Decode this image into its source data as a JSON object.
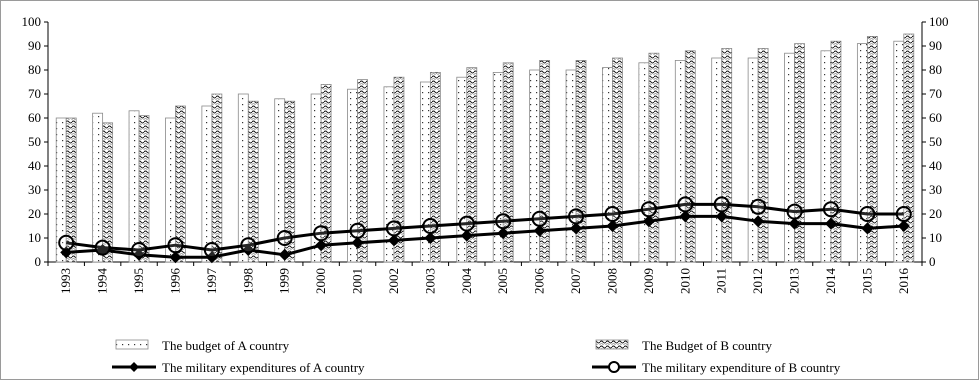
{
  "chart_data": {
    "type": "bar",
    "categories": [
      "1993",
      "1994",
      "1995",
      "1996",
      "1997",
      "1998",
      "1999",
      "2000",
      "2001",
      "2002",
      "2003",
      "2004",
      "2005",
      "2006",
      "2007",
      "2008",
      "2009",
      "2010",
      "2011",
      "2012",
      "2013",
      "2014",
      "2015",
      "2016"
    ],
    "series": [
      {
        "name": "The budget of A country",
        "kind": "bar",
        "pattern": "dots",
        "values": [
          60,
          62,
          63,
          60,
          65,
          70,
          68,
          70,
          72,
          73,
          75,
          77,
          79,
          80,
          80,
          81,
          83,
          84,
          85,
          85,
          87,
          88,
          91,
          92
        ]
      },
      {
        "name": "The Budget of B country",
        "kind": "bar",
        "pattern": "waves",
        "values": [
          60,
          58,
          61,
          65,
          70,
          67,
          67,
          74,
          76,
          77,
          79,
          81,
          83,
          84,
          84,
          85,
          87,
          88,
          89,
          89,
          91,
          92,
          94,
          95
        ]
      },
      {
        "name": "The military expenditures of A country",
        "kind": "line",
        "marker": "diamond",
        "values": [
          4,
          5,
          3,
          2,
          2,
          5,
          3,
          7,
          8,
          9,
          10,
          11,
          12,
          13,
          14,
          15,
          17,
          19,
          19,
          17,
          16,
          16,
          14,
          15
        ]
      },
      {
        "name": "The military expenditure of B country",
        "kind": "line",
        "marker": "circle",
        "values": [
          8,
          6,
          5,
          7,
          5,
          7,
          10,
          12,
          13,
          14,
          15,
          16,
          17,
          18,
          19,
          20,
          22,
          24,
          24,
          23,
          21,
          22,
          20,
          20
        ]
      }
    ],
    "y_ticks": [
      "0",
      "10",
      "20",
      "30",
      "40",
      "50",
      "60",
      "70",
      "80",
      "90",
      "100"
    ],
    "ylim": [
      0,
      100
    ],
    "secondary_ylim": [
      0,
      100
    ],
    "grid": false,
    "legend_position": "bottom"
  }
}
